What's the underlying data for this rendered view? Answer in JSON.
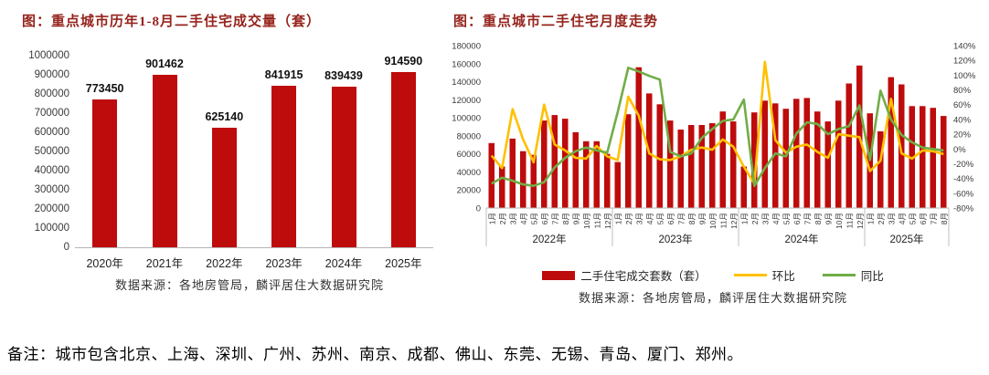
{
  "colors": {
    "bar": "#BE0B0B",
    "mom_line": "#FFC000",
    "yoy_line": "#70AD47",
    "title_text": "#96241D",
    "axis_text": "#3A3A3A",
    "label_text": "#222222",
    "separator": "#BFBFBF"
  },
  "note": {
    "text": "备注：城市包含北京、上海、深圳、广州、苏州、南京、成都、佛山、东莞、无锡、青岛、厦门、郑州。"
  },
  "chart_data": [
    {
      "type": "bar",
      "title": "图：重点城市历年1-8月二手住宅成交量（套）",
      "source": "数据来源：各地房管局，麟评居住大数据研究院",
      "categories": [
        "2020年",
        "2021年",
        "2022年",
        "2023年",
        "2024年",
        "2025年"
      ],
      "values": [
        773450,
        901462,
        625140,
        841915,
        839439,
        914590
      ],
      "xlabel": "",
      "ylabel": "",
      "ylim": [
        0,
        1000000
      ],
      "ytick_step": 100000,
      "grid": false,
      "data_labels": true
    },
    {
      "type": "bar",
      "title": "图：重点城市二手住宅月度走势",
      "source": "数据来源：各地房管局，麟评居住大数据研究院",
      "legend_position": "bottom",
      "grid": false,
      "left_ylim": [
        0,
        180000
      ],
      "left_ytick_step": 20000,
      "right_ylim": [
        -80,
        140
      ],
      "right_ytick_step": 20,
      "right_tick_suffix": "%",
      "year_groups": [
        {
          "label": "2022年",
          "count": 12
        },
        {
          "label": "2023年",
          "count": 12
        },
        {
          "label": "2024年",
          "count": 12
        },
        {
          "label": "2025年",
          "count": 8
        }
      ],
      "categories": [
        "1月",
        "2月",
        "3月",
        "4月",
        "5月",
        "6月",
        "7月",
        "8月",
        "9月",
        "10月",
        "11月",
        "12月",
        "1月",
        "2月",
        "3月",
        "4月",
        "5月",
        "6月",
        "7月",
        "8月",
        "9月",
        "10月",
        "11月",
        "12月",
        "1月",
        "2月",
        "3月",
        "4月",
        "5月",
        "6月",
        "7月",
        "8月",
        "9月",
        "10月",
        "11月",
        "12月",
        "1月",
        "2月",
        "3月",
        "4月",
        "5月",
        "6月",
        "7月",
        "8月"
      ],
      "series": [
        {
          "name": "二手住宅成交套数（套）",
          "render": "bar",
          "axis": "left",
          "values": [
            72000,
            46000,
            77000,
            63000,
            59000,
            97000,
            103000,
            99000,
            84000,
            74000,
            74000,
            60000,
            51000,
            104000,
            156000,
            127000,
            115000,
            97000,
            87000,
            92000,
            92000,
            94000,
            107000,
            96000,
            46000,
            106000,
            119000,
            116000,
            110000,
            121000,
            122000,
            107000,
            96000,
            119000,
            138000,
            158000,
            105000,
            85000,
            145000,
            137000,
            113000,
            113000,
            111000,
            102000
          ]
        },
        {
          "name": "环比",
          "render": "line",
          "axis": "right",
          "values": [
            -9,
            -26,
            54,
            13,
            -18,
            60,
            6,
            -2,
            -12,
            -13,
            4,
            -10,
            -15,
            71,
            45,
            -6,
            -14,
            -15,
            -10,
            -1,
            2,
            -1,
            13,
            3,
            -24,
            -47,
            118,
            12,
            -5,
            3,
            6,
            -4,
            -12,
            20,
            18,
            16,
            -30,
            -16,
            68,
            -6,
            -13,
            -2,
            -3,
            -7
          ]
        },
        {
          "name": "同比",
          "render": "line",
          "axis": "right",
          "values": [
            -47,
            -39,
            -43,
            -48,
            -50,
            -45,
            -25,
            -12,
            -3,
            2,
            -2,
            -5,
            50,
            110,
            105,
            99,
            94,
            -4,
            -10,
            -6,
            15,
            27,
            38,
            40,
            67,
            -50,
            -26,
            -6,
            -10,
            21,
            36,
            34,
            20,
            27,
            31,
            59,
            -15,
            79,
            40,
            19,
            9,
            2,
            0,
            -2
          ]
        }
      ]
    }
  ]
}
